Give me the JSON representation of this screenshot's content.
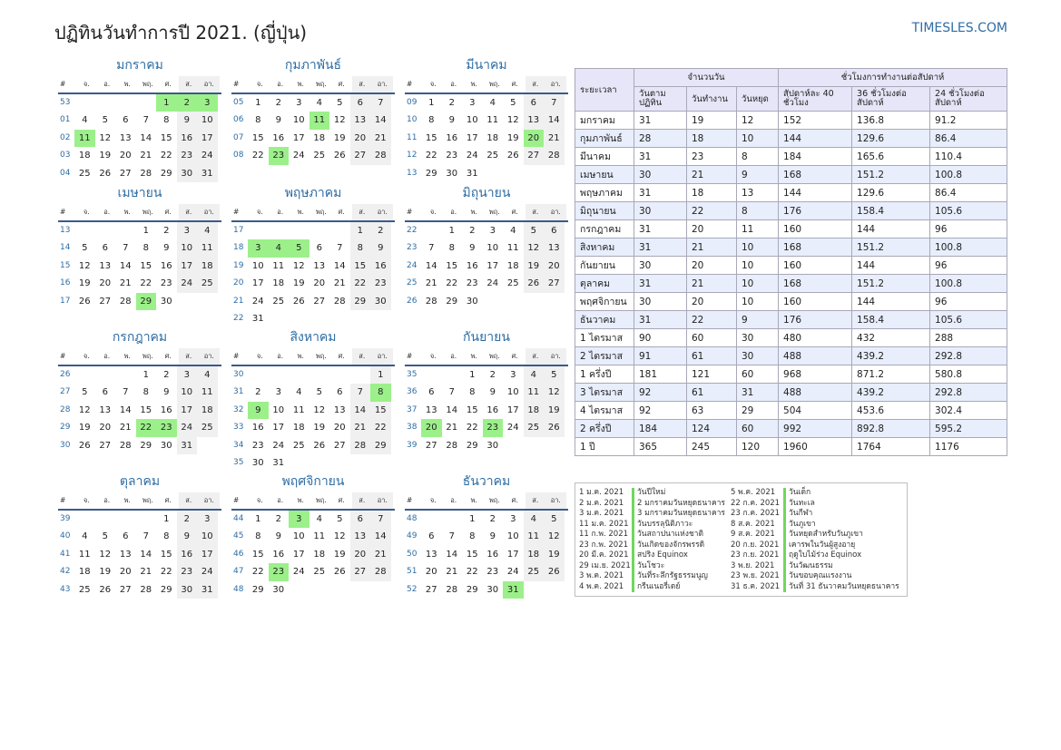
{
  "title": "ปฏิทินวันทำการปี 2021. (ญี่ปุ่น)",
  "site": "TIMESLES.COM",
  "weekdays": [
    "#",
    "จ.",
    "อ.",
    "พ.",
    "พฤ.",
    "ศ.",
    "ส.",
    "อา."
  ],
  "months": [
    {
      "name": "มกราคม",
      "weeks": [
        {
          "wk": "53",
          "days": [
            "",
            "",
            "",
            "",
            "1",
            "2",
            "3"
          ],
          "hol": [
            4,
            5,
            6
          ]
        },
        {
          "wk": "01",
          "days": [
            "4",
            "5",
            "6",
            "7",
            "8",
            "9",
            "10"
          ],
          "hol": []
        },
        {
          "wk": "02",
          "days": [
            "11",
            "12",
            "13",
            "14",
            "15",
            "16",
            "17"
          ],
          "hol": [
            0
          ]
        },
        {
          "wk": "03",
          "days": [
            "18",
            "19",
            "20",
            "21",
            "22",
            "23",
            "24"
          ],
          "hol": []
        },
        {
          "wk": "04",
          "days": [
            "25",
            "26",
            "27",
            "28",
            "29",
            "30",
            "31"
          ],
          "hol": []
        }
      ]
    },
    {
      "name": "กุมภาพันธ์",
      "weeks": [
        {
          "wk": "05",
          "days": [
            "1",
            "2",
            "3",
            "4",
            "5",
            "6",
            "7"
          ],
          "hol": []
        },
        {
          "wk": "06",
          "days": [
            "8",
            "9",
            "10",
            "11",
            "12",
            "13",
            "14"
          ],
          "hol": [
            3
          ]
        },
        {
          "wk": "07",
          "days": [
            "15",
            "16",
            "17",
            "18",
            "19",
            "20",
            "21"
          ],
          "hol": []
        },
        {
          "wk": "08",
          "days": [
            "22",
            "23",
            "24",
            "25",
            "26",
            "27",
            "28"
          ],
          "hol": [
            1
          ]
        }
      ]
    },
    {
      "name": "มีนาคม",
      "weeks": [
        {
          "wk": "09",
          "days": [
            "1",
            "2",
            "3",
            "4",
            "5",
            "6",
            "7"
          ],
          "hol": []
        },
        {
          "wk": "10",
          "days": [
            "8",
            "9",
            "10",
            "11",
            "12",
            "13",
            "14"
          ],
          "hol": []
        },
        {
          "wk": "11",
          "days": [
            "15",
            "16",
            "17",
            "18",
            "19",
            "20",
            "21"
          ],
          "hol": [
            5
          ]
        },
        {
          "wk": "12",
          "days": [
            "22",
            "23",
            "24",
            "25",
            "26",
            "27",
            "28"
          ],
          "hol": []
        },
        {
          "wk": "13",
          "days": [
            "29",
            "30",
            "31",
            "",
            "",
            "",
            ""
          ],
          "hol": []
        }
      ]
    },
    {
      "name": "เมษายน",
      "weeks": [
        {
          "wk": "13",
          "days": [
            "",
            "",
            "",
            "1",
            "2",
            "3",
            "4"
          ],
          "hol": []
        },
        {
          "wk": "14",
          "days": [
            "5",
            "6",
            "7",
            "8",
            "9",
            "10",
            "11"
          ],
          "hol": []
        },
        {
          "wk": "15",
          "days": [
            "12",
            "13",
            "14",
            "15",
            "16",
            "17",
            "18"
          ],
          "hol": []
        },
        {
          "wk": "16",
          "days": [
            "19",
            "20",
            "21",
            "22",
            "23",
            "24",
            "25"
          ],
          "hol": []
        },
        {
          "wk": "17",
          "days": [
            "26",
            "27",
            "28",
            "29",
            "30",
            "",
            ""
          ],
          "hol": [
            3
          ]
        }
      ]
    },
    {
      "name": "พฤษภาคม",
      "weeks": [
        {
          "wk": "17",
          "days": [
            "",
            "",
            "",
            "",
            "",
            "1",
            "2"
          ],
          "hol": []
        },
        {
          "wk": "18",
          "days": [
            "3",
            "4",
            "5",
            "6",
            "7",
            "8",
            "9"
          ],
          "hol": [
            0,
            1,
            2
          ]
        },
        {
          "wk": "19",
          "days": [
            "10",
            "11",
            "12",
            "13",
            "14",
            "15",
            "16"
          ],
          "hol": []
        },
        {
          "wk": "20",
          "days": [
            "17",
            "18",
            "19",
            "20",
            "21",
            "22",
            "23"
          ],
          "hol": []
        },
        {
          "wk": "21",
          "days": [
            "24",
            "25",
            "26",
            "27",
            "28",
            "29",
            "30"
          ],
          "hol": []
        },
        {
          "wk": "22",
          "days": [
            "31",
            "",
            "",
            "",
            "",
            "",
            ""
          ],
          "hol": []
        }
      ]
    },
    {
      "name": "มิถุนายน",
      "weeks": [
        {
          "wk": "22",
          "days": [
            "",
            "1",
            "2",
            "3",
            "4",
            "5",
            "6"
          ],
          "hol": []
        },
        {
          "wk": "23",
          "days": [
            "7",
            "8",
            "9",
            "10",
            "11",
            "12",
            "13"
          ],
          "hol": []
        },
        {
          "wk": "24",
          "days": [
            "14",
            "15",
            "16",
            "17",
            "18",
            "19",
            "20"
          ],
          "hol": []
        },
        {
          "wk": "25",
          "days": [
            "21",
            "22",
            "23",
            "24",
            "25",
            "26",
            "27"
          ],
          "hol": []
        },
        {
          "wk": "26",
          "days": [
            "28",
            "29",
            "30",
            "",
            "",
            "",
            ""
          ],
          "hol": []
        }
      ]
    },
    {
      "name": "กรกฎาคม",
      "weeks": [
        {
          "wk": "26",
          "days": [
            "",
            "",
            "",
            "1",
            "2",
            "3",
            "4"
          ],
          "hol": []
        },
        {
          "wk": "27",
          "days": [
            "5",
            "6",
            "7",
            "8",
            "9",
            "10",
            "11"
          ],
          "hol": []
        },
        {
          "wk": "28",
          "days": [
            "12",
            "13",
            "14",
            "15",
            "16",
            "17",
            "18"
          ],
          "hol": []
        },
        {
          "wk": "29",
          "days": [
            "19",
            "20",
            "21",
            "22",
            "23",
            "24",
            "25"
          ],
          "hol": [
            3,
            4
          ]
        },
        {
          "wk": "30",
          "days": [
            "26",
            "27",
            "28",
            "29",
            "30",
            "31",
            ""
          ],
          "hol": []
        }
      ]
    },
    {
      "name": "สิงหาคม",
      "weeks": [
        {
          "wk": "30",
          "days": [
            "",
            "",
            "",
            "",
            "",
            "",
            "1"
          ],
          "hol": []
        },
        {
          "wk": "31",
          "days": [
            "2",
            "3",
            "4",
            "5",
            "6",
            "7",
            "8"
          ],
          "hol": [
            6
          ]
        },
        {
          "wk": "32",
          "days": [
            "9",
            "10",
            "11",
            "12",
            "13",
            "14",
            "15"
          ],
          "hol": [
            0
          ]
        },
        {
          "wk": "33",
          "days": [
            "16",
            "17",
            "18",
            "19",
            "20",
            "21",
            "22"
          ],
          "hol": []
        },
        {
          "wk": "34",
          "days": [
            "23",
            "24",
            "25",
            "26",
            "27",
            "28",
            "29"
          ],
          "hol": []
        },
        {
          "wk": "35",
          "days": [
            "30",
            "31",
            "",
            "",
            "",
            "",
            ""
          ],
          "hol": []
        }
      ]
    },
    {
      "name": "กันยายน",
      "weeks": [
        {
          "wk": "35",
          "days": [
            "",
            "",
            "1",
            "2",
            "3",
            "4",
            "5"
          ],
          "hol": []
        },
        {
          "wk": "36",
          "days": [
            "6",
            "7",
            "8",
            "9",
            "10",
            "11",
            "12"
          ],
          "hol": []
        },
        {
          "wk": "37",
          "days": [
            "13",
            "14",
            "15",
            "16",
            "17",
            "18",
            "19"
          ],
          "hol": []
        },
        {
          "wk": "38",
          "days": [
            "20",
            "21",
            "22",
            "23",
            "24",
            "25",
            "26"
          ],
          "hol": [
            0,
            3
          ]
        },
        {
          "wk": "39",
          "days": [
            "27",
            "28",
            "29",
            "30",
            "",
            "",
            ""
          ],
          "hol": []
        }
      ]
    },
    {
      "name": "ตุลาคม",
      "weeks": [
        {
          "wk": "39",
          "days": [
            "",
            "",
            "",
            "",
            "1",
            "2",
            "3"
          ],
          "hol": []
        },
        {
          "wk": "40",
          "days": [
            "4",
            "5",
            "6",
            "7",
            "8",
            "9",
            "10"
          ],
          "hol": []
        },
        {
          "wk": "41",
          "days": [
            "11",
            "12",
            "13",
            "14",
            "15",
            "16",
            "17"
          ],
          "hol": []
        },
        {
          "wk": "42",
          "days": [
            "18",
            "19",
            "20",
            "21",
            "22",
            "23",
            "24"
          ],
          "hol": []
        },
        {
          "wk": "43",
          "days": [
            "25",
            "26",
            "27",
            "28",
            "29",
            "30",
            "31"
          ],
          "hol": []
        }
      ]
    },
    {
      "name": "พฤศจิกายน",
      "weeks": [
        {
          "wk": "44",
          "days": [
            "1",
            "2",
            "3",
            "4",
            "5",
            "6",
            "7"
          ],
          "hol": [
            2
          ]
        },
        {
          "wk": "45",
          "days": [
            "8",
            "9",
            "10",
            "11",
            "12",
            "13",
            "14"
          ],
          "hol": []
        },
        {
          "wk": "46",
          "days": [
            "15",
            "16",
            "17",
            "18",
            "19",
            "20",
            "21"
          ],
          "hol": []
        },
        {
          "wk": "47",
          "days": [
            "22",
            "23",
            "24",
            "25",
            "26",
            "27",
            "28"
          ],
          "hol": [
            1
          ]
        },
        {
          "wk": "48",
          "days": [
            "29",
            "30",
            "",
            "",
            "",
            "",
            ""
          ],
          "hol": []
        }
      ]
    },
    {
      "name": "ธันวาคม",
      "weeks": [
        {
          "wk": "48",
          "days": [
            "",
            "",
            "1",
            "2",
            "3",
            "4",
            "5"
          ],
          "hol": []
        },
        {
          "wk": "49",
          "days": [
            "6",
            "7",
            "8",
            "9",
            "10",
            "11",
            "12"
          ],
          "hol": []
        },
        {
          "wk": "50",
          "days": [
            "13",
            "14",
            "15",
            "16",
            "17",
            "18",
            "19"
          ],
          "hol": []
        },
        {
          "wk": "51",
          "days": [
            "20",
            "21",
            "22",
            "23",
            "24",
            "25",
            "26"
          ],
          "hol": []
        },
        {
          "wk": "52",
          "days": [
            "27",
            "28",
            "29",
            "30",
            "31",
            "",
            ""
          ],
          "hol": [
            4
          ]
        }
      ]
    }
  ],
  "stats": {
    "h_period": "ระยะเวลา",
    "h_days": "จำนวนวัน",
    "h_hours": "ชั่วโมงการทำงานต่อสัปดาห์",
    "h_calendar": "วันตามปฏิทิน",
    "h_work": "วันทำงาน",
    "h_off": "วันหยุด",
    "h_40": "สัปดาห์ละ 40 ชั่วโมง",
    "h_36": "36 ชั่วโมงต่อสัปดาห์",
    "h_24": "24 ชั่วโมงต่อสัปดาห์",
    "rows": [
      [
        "มกราคม",
        "31",
        "19",
        "12",
        "152",
        "136.8",
        "91.2"
      ],
      [
        "กุมภาพันธ์",
        "28",
        "18",
        "10",
        "144",
        "129.6",
        "86.4"
      ],
      [
        "มีนาคม",
        "31",
        "23",
        "8",
        "184",
        "165.6",
        "110.4"
      ],
      [
        "เมษายน",
        "30",
        "21",
        "9",
        "168",
        "151.2",
        "100.8"
      ],
      [
        "พฤษภาคม",
        "31",
        "18",
        "13",
        "144",
        "129.6",
        "86.4"
      ],
      [
        "มิถุนายน",
        "30",
        "22",
        "8",
        "176",
        "158.4",
        "105.6"
      ],
      [
        "กรกฎาคม",
        "31",
        "20",
        "11",
        "160",
        "144",
        "96"
      ],
      [
        "สิงหาคม",
        "31",
        "21",
        "10",
        "168",
        "151.2",
        "100.8"
      ],
      [
        "กันยายน",
        "30",
        "20",
        "10",
        "160",
        "144",
        "96"
      ],
      [
        "ตุลาคม",
        "31",
        "21",
        "10",
        "168",
        "151.2",
        "100.8"
      ],
      [
        "พฤศจิกายน",
        "30",
        "20",
        "10",
        "160",
        "144",
        "96"
      ],
      [
        "ธันวาคม",
        "31",
        "22",
        "9",
        "176",
        "158.4",
        "105.6"
      ],
      [
        "1 ไตรมาส",
        "90",
        "60",
        "30",
        "480",
        "432",
        "288"
      ],
      [
        "2 ไตรมาส",
        "91",
        "61",
        "30",
        "488",
        "439.2",
        "292.8"
      ],
      [
        "1 ครึ่งปี",
        "181",
        "121",
        "60",
        "968",
        "871.2",
        "580.8"
      ],
      [
        "3 ไตรมาส",
        "92",
        "61",
        "31",
        "488",
        "439.2",
        "292.8"
      ],
      [
        "4 ไตรมาส",
        "92",
        "63",
        "29",
        "504",
        "453.6",
        "302.4"
      ],
      [
        "2 ครึ่งปี",
        "184",
        "124",
        "60",
        "992",
        "892.8",
        "595.2"
      ],
      [
        "1 ปี",
        "365",
        "245",
        "120",
        "1960",
        "1764",
        "1176"
      ]
    ]
  },
  "holidays_left": [
    [
      "1 ม.ค. 2021",
      "วันปีใหม่"
    ],
    [
      "2 ม.ค. 2021",
      "2 มกราคมวันหยุดธนาคาร"
    ],
    [
      "3 ม.ค. 2021",
      "3 มกราคมวันหยุดธนาคาร"
    ],
    [
      "11 ม.ค. 2021",
      "วันบรรลุนิติภาวะ"
    ],
    [
      "11 ก.พ. 2021",
      "วันสถาปนาแห่งชาติ"
    ],
    [
      "23 ก.พ. 2021",
      "วันเกิดของจักรพรรดิ"
    ],
    [
      "20 มี.ค. 2021",
      "สปริง Equinox"
    ],
    [
      "29 เม.ย. 2021",
      "วันโชวะ"
    ],
    [
      "3 พ.ค. 2021",
      "วันที่ระลึกรัฐธรรมนูญ"
    ],
    [
      "4 พ.ค. 2021",
      "กรีนเนอรี่เดย์"
    ]
  ],
  "holidays_right": [
    [
      "5 พ.ค. 2021",
      "วันเด็ก"
    ],
    [
      "22 ก.ค. 2021",
      "วันทะเล"
    ],
    [
      "23 ก.ค. 2021",
      "วันกีฬา"
    ],
    [
      "8 ส.ค. 2021",
      "วันภูเขา"
    ],
    [
      "9 ส.ค. 2021",
      "วันหยุดสำหรับวันภูเขา"
    ],
    [
      "20 ก.ย. 2021",
      "เคารพในวันผู้สูงอายุ"
    ],
    [
      "23 ก.ย. 2021",
      "ฤดูใบไม้ร่วง Equinox"
    ],
    [
      "3 พ.ย. 2021",
      "วันวัฒนธรรม"
    ],
    [
      "23 พ.ย. 2021",
      "วันขอบคุณแรงงาน"
    ],
    [
      "31 ธ.ค. 2021",
      "วันที่ 31 ธันวาคมวันหยุดธนาคาร"
    ]
  ]
}
